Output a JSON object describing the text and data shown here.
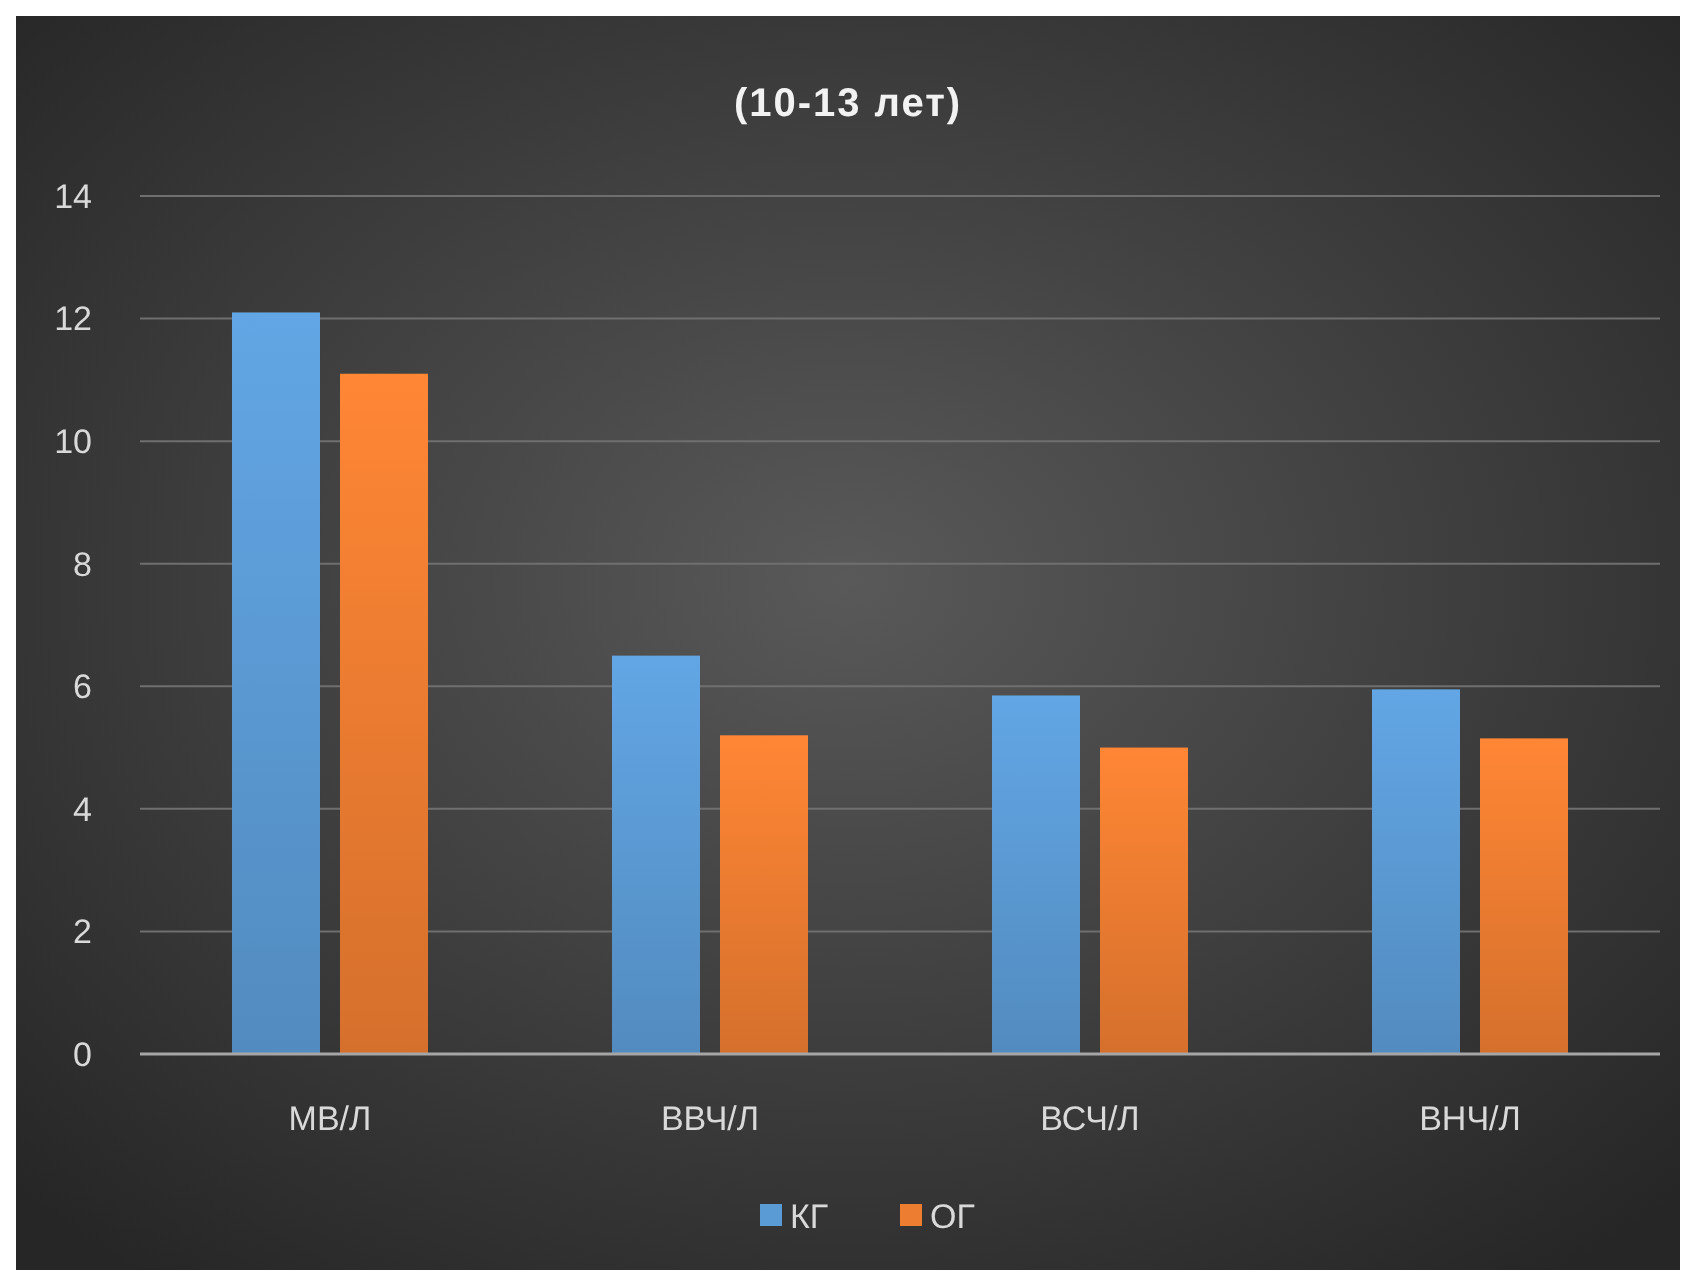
{
  "chart_data": {
    "type": "bar",
    "title": "(10-13 лет)",
    "categories": [
      "МВ/Л",
      "ВВЧ/Л",
      "ВСЧ/Л",
      "ВНЧ/Л"
    ],
    "series": [
      {
        "name": "КГ",
        "color": "#5b9bd5",
        "values": [
          12.1,
          6.5,
          5.85,
          5.95
        ]
      },
      {
        "name": "ОГ",
        "color": "#ed7d31",
        "values": [
          11.1,
          5.2,
          5.0,
          5.15
        ]
      }
    ],
    "ylim": [
      0,
      14
    ],
    "yticks": [
      0,
      2,
      4,
      6,
      8,
      10,
      12,
      14
    ],
    "grid": "y",
    "legend": "bottom"
  }
}
